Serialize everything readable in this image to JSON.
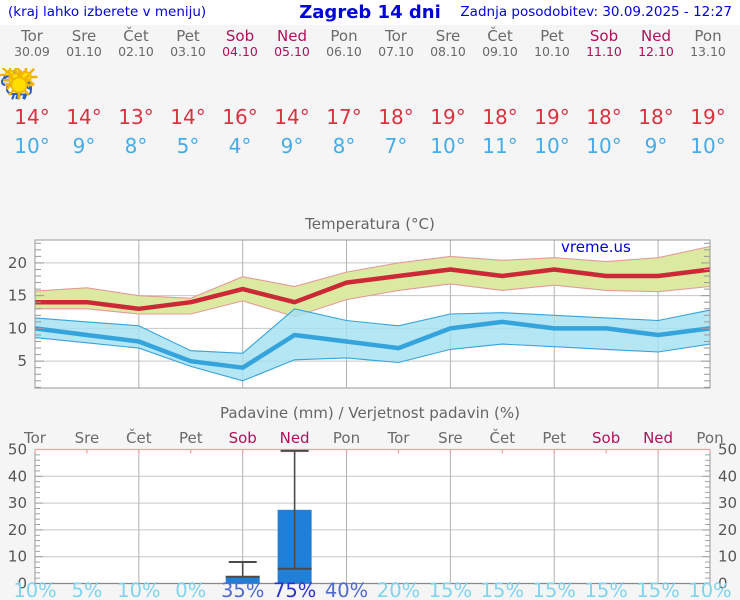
{
  "header": {
    "left_hint": "(kraj lahko izberete v meniju)",
    "title": "Zagreb 14 dni",
    "updated": "Zadnja posodobitev: 30.09.2025 - 12:27"
  },
  "forecast": {
    "days": [
      {
        "name": "Tor",
        "date": "30.09",
        "weekend": false,
        "icon": "cloudy",
        "tmax": "14°",
        "tmin": "10°"
      },
      {
        "name": "Sre",
        "date": "01.10",
        "weekend": false,
        "icon": "partly",
        "tmax": "14°",
        "tmin": "9°"
      },
      {
        "name": "Čet",
        "date": "02.10",
        "weekend": false,
        "icon": "partly",
        "tmax": "13°",
        "tmin": "8°"
      },
      {
        "name": "Pet",
        "date": "03.10",
        "weekend": false,
        "icon": "sunny",
        "tmax": "14°",
        "tmin": "5°"
      },
      {
        "name": "Sob",
        "date": "04.10",
        "weekend": true,
        "icon": "rain",
        "tmax": "16°",
        "tmin": "4°"
      },
      {
        "name": "Ned",
        "date": "05.10",
        "weekend": true,
        "icon": "sun-rain",
        "tmax": "14°",
        "tmin": "9°"
      },
      {
        "name": "Pon",
        "date": "06.10",
        "weekend": false,
        "icon": "partly",
        "tmax": "17°",
        "tmin": "8°"
      },
      {
        "name": "Tor",
        "date": "07.10",
        "weekend": false,
        "icon": "mostly-sunny",
        "tmax": "18°",
        "tmin": "7°"
      },
      {
        "name": "Sre",
        "date": "08.10",
        "weekend": false,
        "icon": "sunny",
        "tmax": "19°",
        "tmin": "10°"
      },
      {
        "name": "Čet",
        "date": "09.10",
        "weekend": false,
        "icon": "sunny",
        "tmax": "18°",
        "tmin": "11°"
      },
      {
        "name": "Pet",
        "date": "10.10",
        "weekend": false,
        "icon": "sunny",
        "tmax": "19°",
        "tmin": "10°"
      },
      {
        "name": "Sob",
        "date": "11.10",
        "weekend": true,
        "icon": "sunny",
        "tmax": "18°",
        "tmin": "10°"
      },
      {
        "name": "Ned",
        "date": "12.10",
        "weekend": true,
        "icon": "sunny",
        "tmax": "18°",
        "tmin": "9°"
      },
      {
        "name": "Pon",
        "date": "13.10",
        "weekend": false,
        "icon": "sunny",
        "tmax": "19°",
        "tmin": "10°"
      }
    ]
  },
  "chart_data": [
    {
      "type": "line",
      "title": "Temperatura (°C)",
      "watermark": "vreme.us",
      "categories": [
        "Tor 30.09",
        "Sre 01.10",
        "Čet 02.10",
        "Pet 03.10",
        "Sob 04.10",
        "Ned 05.10",
        "Pon 06.10",
        "Tor 07.10",
        "Sre 08.10",
        "Čet 09.10",
        "Pet 10.10",
        "Sob 11.10",
        "Ned 12.10",
        "Pon 13.10"
      ],
      "y_ticks": [
        5,
        10,
        15,
        20
      ],
      "ylim": [
        0.9,
        23.5
      ],
      "grid": true,
      "legend": "none",
      "series": [
        {
          "name": "max temperature",
          "color": "#cb2936",
          "band_color": "#dce9a0",
          "band_edge_color": "#e59a9a",
          "values": [
            14,
            14,
            13,
            14,
            16,
            14,
            17,
            18,
            19,
            18,
            19,
            18,
            18,
            19
          ],
          "band_upper": [
            15.7,
            16.2,
            15.0,
            14.6,
            17.9,
            16.4,
            18.6,
            20.0,
            21.0,
            20.4,
            20.8,
            20.2,
            20.8,
            22.5
          ],
          "band_lower": [
            13.0,
            13.0,
            12.2,
            12.2,
            14.2,
            11.8,
            14.4,
            15.8,
            16.8,
            15.8,
            16.6,
            15.8,
            15.6,
            16.4
          ]
        },
        {
          "name": "min temperature",
          "color": "#35a3dc",
          "band_color": "#a5e1f2",
          "band_edge_color": "#35a3dc",
          "values": [
            10,
            9,
            8,
            5,
            4,
            9,
            8,
            7,
            10,
            11,
            10,
            10,
            9,
            10
          ],
          "band_upper": [
            11.6,
            11.0,
            10.4,
            6.6,
            6.2,
            13.0,
            11.2,
            10.4,
            12.2,
            12.4,
            12.0,
            11.6,
            11.2,
            12.8
          ],
          "band_lower": [
            8.6,
            7.8,
            7.0,
            4.2,
            2.0,
            5.2,
            5.5,
            4.8,
            6.8,
            7.6,
            7.2,
            6.8,
            6.4,
            7.6
          ]
        }
      ]
    },
    {
      "type": "bar",
      "title": "Padavine (mm) / Verjetnost padavin (%)",
      "categories": [
        "Tor",
        "Sre",
        "Čet",
        "Pet",
        "Sob",
        "Ned",
        "Pon",
        "Tor",
        "Sre",
        "Čet",
        "Pet",
        "Sob",
        "Ned",
        "Pon"
      ],
      "weekend": [
        false,
        false,
        false,
        false,
        true,
        true,
        false,
        false,
        false,
        false,
        false,
        true,
        true,
        false
      ],
      "values_mm": [
        0,
        0,
        0,
        0,
        2.5,
        27.5,
        0,
        0,
        0,
        0,
        0,
        0,
        0,
        0
      ],
      "whisker_low": [
        null,
        null,
        null,
        null,
        2.5,
        5.5,
        null,
        null,
        null,
        null,
        null,
        null,
        null,
        null
      ],
      "whisker_high": [
        null,
        null,
        null,
        null,
        8,
        49.5,
        null,
        null,
        null,
        null,
        null,
        null,
        null,
        null
      ],
      "probabilities": [
        "10%",
        "5%",
        "10%",
        "0%",
        "35%",
        "75%",
        "40%",
        "20%",
        "15%",
        "15%",
        "15%",
        "15%",
        "15%",
        "10%"
      ],
      "prob_levels": [
        "low",
        "low",
        "low",
        "low",
        "med",
        "high",
        "med",
        "low",
        "low",
        "low",
        "low",
        "low",
        "low",
        "low"
      ],
      "y_ticks": [
        0,
        10,
        20,
        30,
        40,
        50
      ],
      "ylim": [
        0,
        50
      ],
      "grid": true
    }
  ],
  "colors": {
    "header_blue": "#0202dd",
    "day_gray": "#6a6a6a",
    "weekend_red": "#b0105a",
    "tmax_red": "#d9333f",
    "tmin_blue": "#45ace8",
    "bar_blue": "#2080d8",
    "whisker_gray": "#4a4a4a",
    "grid_light": "#c6c6c6",
    "grid_vert": "#b2b2b2",
    "axis_gray": "#999999",
    "label_gray": "#555555",
    "precip_top_pink": "#f0a0a0",
    "prob_low": "#7fd4ee",
    "prob_med": "#4f6bd2",
    "prob_high": "#2b2fd0",
    "watermark_blue": "#0000dd"
  }
}
